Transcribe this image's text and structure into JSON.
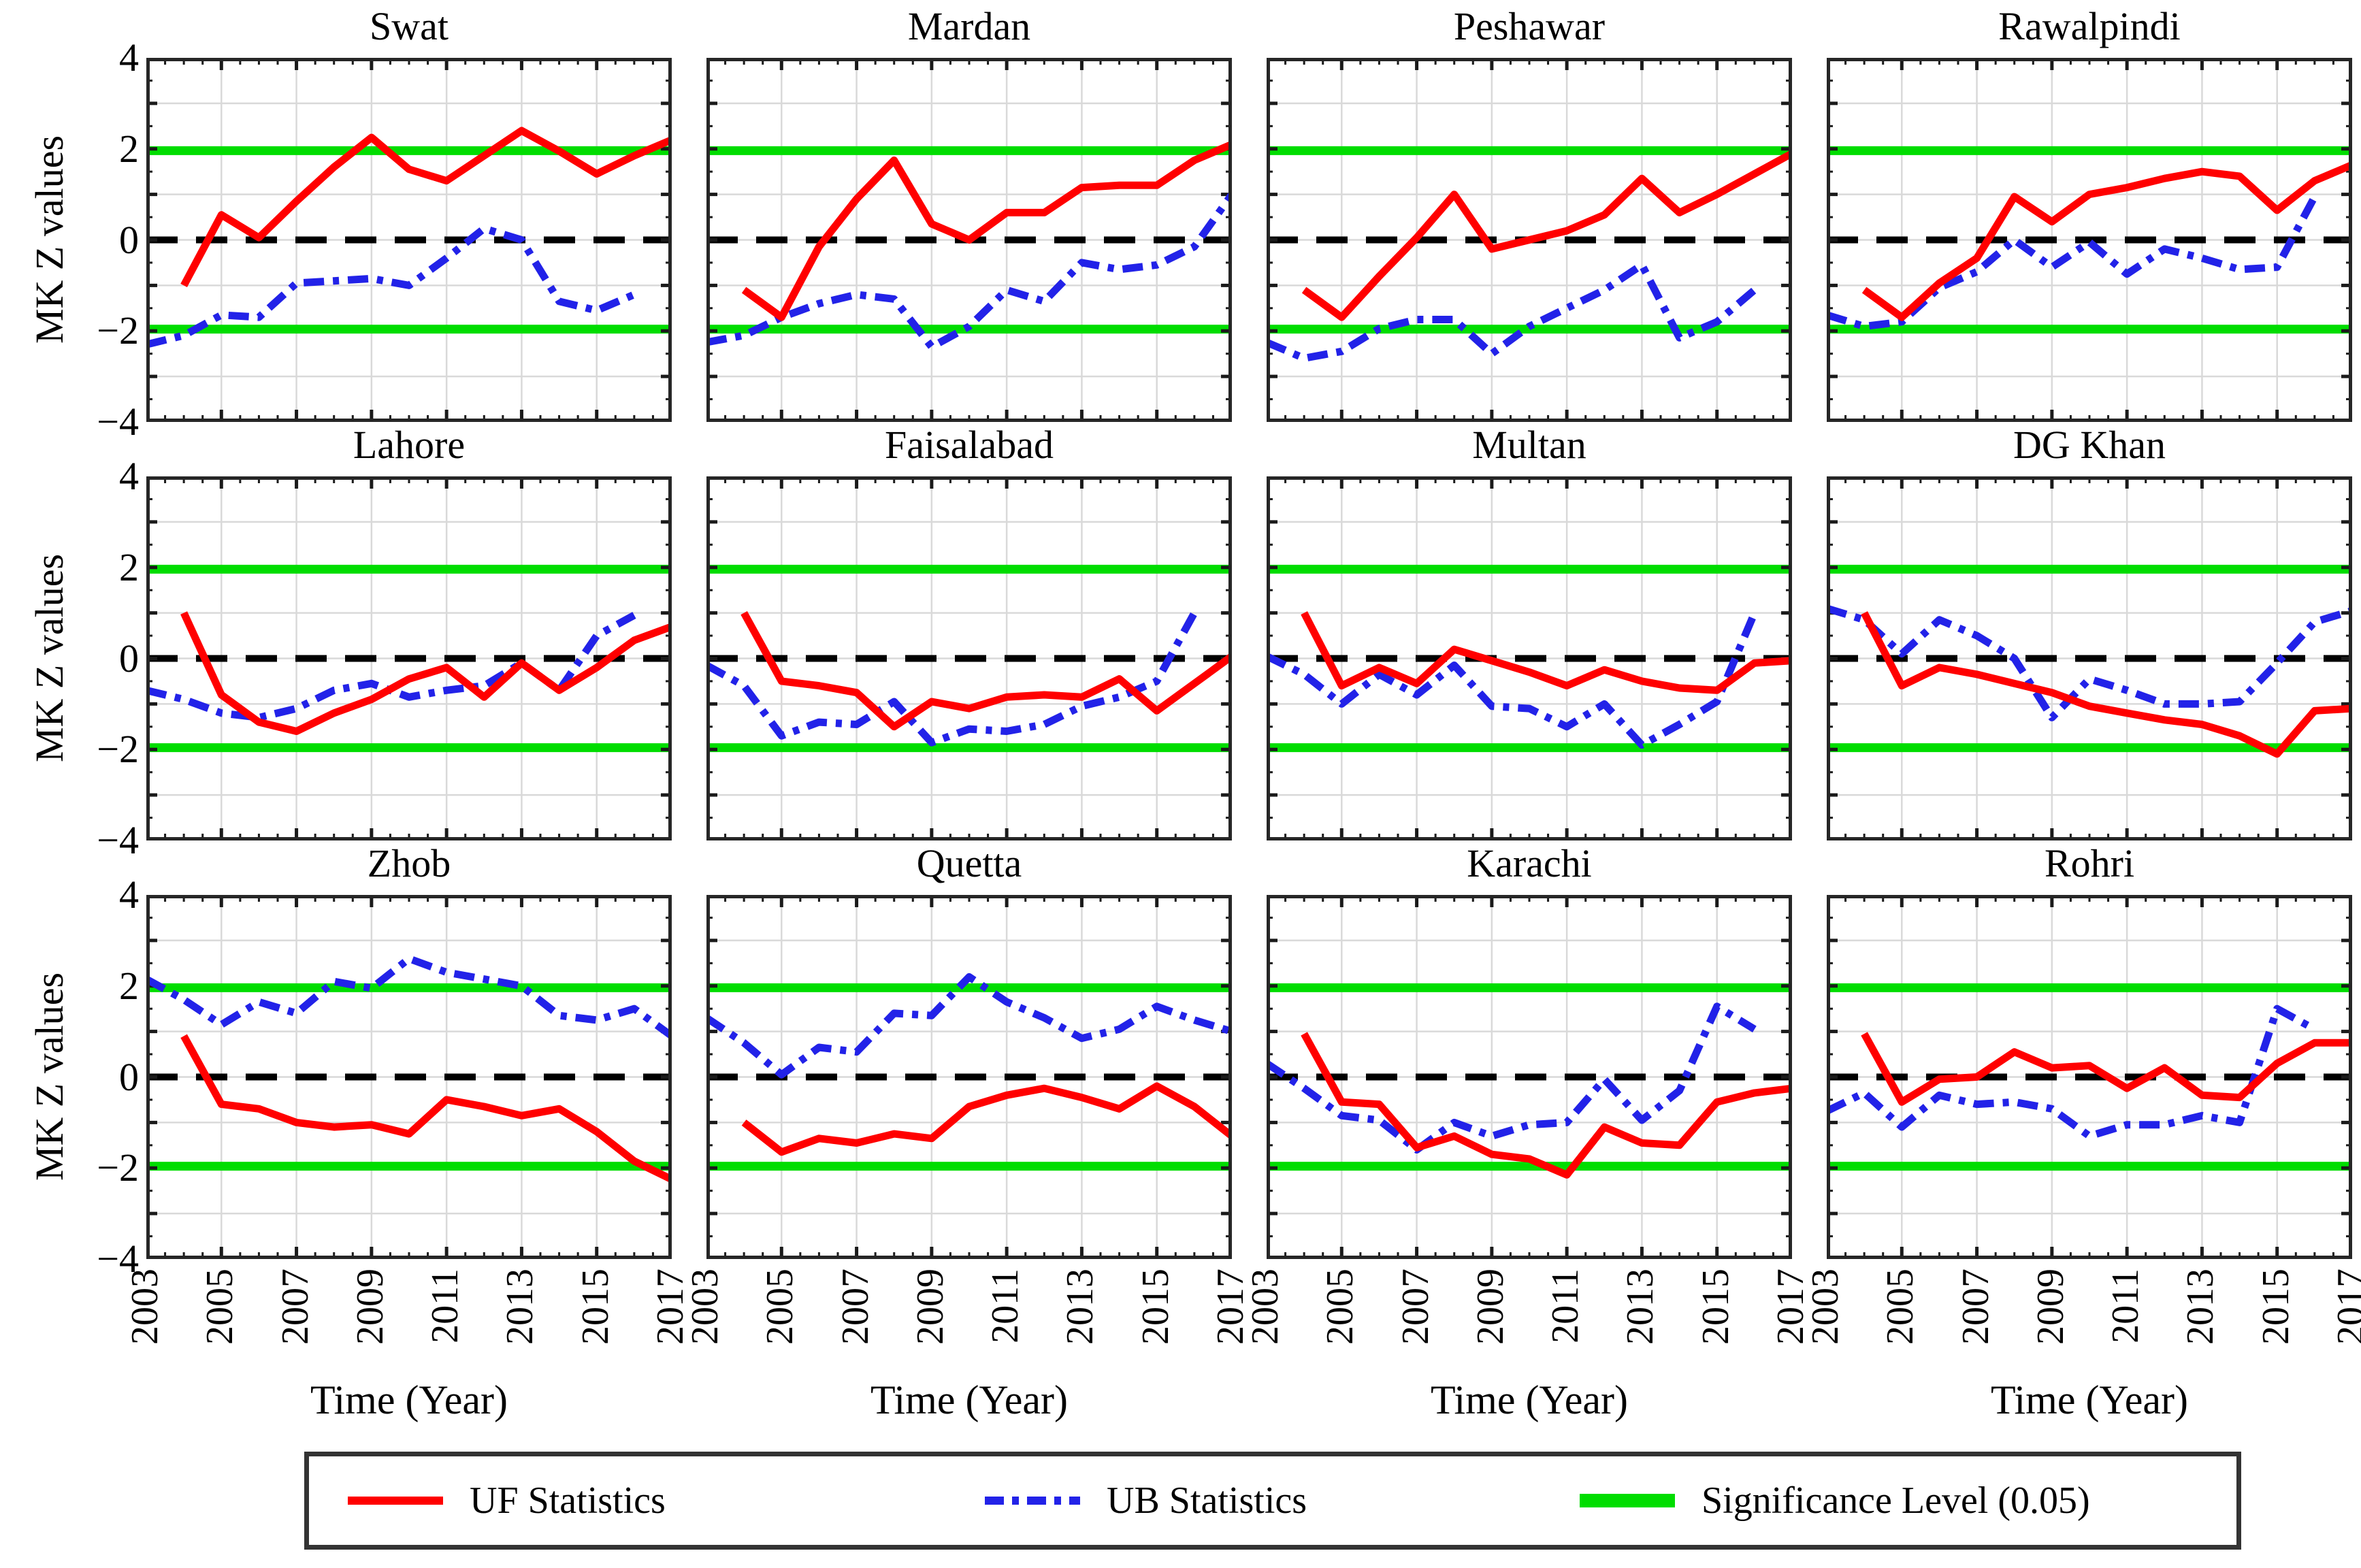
{
  "page_background": "#ffffff",
  "y_axis": {
    "label": "MK Z values",
    "tick_labels": [
      "4",
      "2",
      "0",
      "−2",
      "−4"
    ],
    "tick_values": [
      4,
      2,
      0,
      -2,
      -4
    ]
  },
  "x_axis": {
    "label": "Time (Year)",
    "tick_labels": [
      "2003",
      "2005",
      "2007",
      "2009",
      "2011",
      "2013",
      "2015",
      "2017"
    ],
    "tick_values": [
      2003,
      2005,
      2007,
      2009,
      2011,
      2013,
      2015,
      2017
    ]
  },
  "colors": {
    "uf": "#ff0000",
    "ub": "#2222e8",
    "significance": "#00dd00",
    "zero_line": "#000000",
    "grid": "#d9d9d9",
    "axis": "#262626"
  },
  "legend": {
    "items": [
      {
        "label": "UF Statistics",
        "color": "#ff0000",
        "style": "solid"
      },
      {
        "label": "UB Statistics",
        "color": "#2222e8",
        "style": "dash-dot"
      },
      {
        "label": "Significance Level (0.05)",
        "color": "#00dd00",
        "style": "solid"
      }
    ]
  },
  "chart_data": {
    "type": "line",
    "layout": {
      "rows": 3,
      "cols": 4
    },
    "x_range": [
      2003,
      2017
    ],
    "y_range": [
      -4,
      4
    ],
    "x_ticks": [
      2003,
      2005,
      2007,
      2009,
      2011,
      2013,
      2015,
      2017
    ],
    "y_ticks": [
      4,
      2,
      0,
      -2,
      -4
    ],
    "grid": true,
    "significance_level": 1.96,
    "zero_line": 0,
    "series_info": {
      "uf": {
        "name": "UF Statistics",
        "color": "#ff0000",
        "style": "solid"
      },
      "ub": {
        "name": "UB Statistics",
        "color": "#2222e8",
        "style": "dash-dot"
      }
    },
    "charts": [
      {
        "title": "Swat",
        "uf_start": 2004,
        "uf": [
          -1.0,
          0.55,
          0.05,
          0.85,
          1.6,
          2.25,
          1.55,
          1.3,
          1.85,
          2.4,
          1.95,
          1.45,
          1.85,
          2.2
        ],
        "ub_start": 2003,
        "ub": [
          -2.3,
          -2.1,
          -1.65,
          -1.7,
          -0.95,
          -0.9,
          -0.85,
          -1.0,
          -0.4,
          0.25,
          0.0,
          -1.35,
          -1.55,
          -1.2
        ]
      },
      {
        "title": "Mardan",
        "uf_start": 2004,
        "uf": [
          -1.1,
          -1.7,
          -0.15,
          0.9,
          1.75,
          0.35,
          0.0,
          0.6,
          0.6,
          1.15,
          1.2,
          1.2,
          1.75,
          2.1
        ],
        "ub_start": 2003,
        "ub": [
          -2.25,
          -2.1,
          -1.7,
          -1.4,
          -1.2,
          -1.3,
          -2.35,
          -1.9,
          -1.1,
          -1.35,
          -0.5,
          -0.65,
          -0.55,
          -0.15,
          1.0
        ]
      },
      {
        "title": "Peshawar",
        "uf_start": 2004,
        "uf": [
          -1.1,
          -1.7,
          -0.8,
          0.05,
          1.0,
          -0.2,
          0.0,
          0.2,
          0.55,
          1.35,
          0.6,
          1.0,
          1.45,
          1.9
        ],
        "ub_start": 2003,
        "ub": [
          -2.25,
          -2.6,
          -2.45,
          -1.95,
          -1.75,
          -1.75,
          -2.5,
          -1.9,
          -1.5,
          -1.1,
          -0.55,
          -2.15,
          -1.8,
          -1.1
        ]
      },
      {
        "title": "Rawalpindi",
        "uf_start": 2004,
        "uf": [
          -1.1,
          -1.7,
          -0.95,
          -0.4,
          0.95,
          0.4,
          1.0,
          1.15,
          1.35,
          1.5,
          1.4,
          0.65,
          1.3,
          1.65
        ],
        "ub_start": 2003,
        "ub": [
          -1.65,
          -1.9,
          -1.8,
          -1.05,
          -0.7,
          0.0,
          -0.6,
          -0.05,
          -0.75,
          -0.2,
          -0.4,
          -0.65,
          -0.6,
          0.95
        ]
      },
      {
        "title": "Lahore",
        "uf_start": 2004,
        "uf": [
          1.0,
          -0.8,
          -1.4,
          -1.6,
          -1.2,
          -0.9,
          -0.45,
          -0.2,
          -0.85,
          -0.1,
          -0.7,
          -0.2,
          0.4,
          0.7
        ],
        "ub_start": 2003,
        "ub": [
          -0.7,
          -0.9,
          -1.2,
          -1.3,
          -1.1,
          -0.7,
          -0.55,
          -0.85,
          -0.7,
          -0.6,
          -0.1,
          -0.7,
          0.5,
          0.95
        ]
      },
      {
        "title": "Faisalabad",
        "uf_start": 2004,
        "uf": [
          1.0,
          -0.5,
          -0.6,
          -0.75,
          -1.5,
          -0.95,
          -1.1,
          -0.85,
          -0.8,
          -0.85,
          -0.45,
          -1.15,
          -0.55,
          0.05
        ],
        "ub_start": 2003,
        "ub": [
          -0.15,
          -0.6,
          -1.7,
          -1.4,
          -1.45,
          -0.95,
          -1.85,
          -1.55,
          -1.6,
          -1.45,
          -1.05,
          -0.85,
          -0.5,
          1.0
        ]
      },
      {
        "title": "Multan",
        "uf_start": 2004,
        "uf": [
          1.0,
          -0.6,
          -0.2,
          -0.55,
          0.2,
          -0.05,
          -0.3,
          -0.6,
          -0.25,
          -0.5,
          -0.65,
          -0.7,
          -0.1,
          -0.05
        ],
        "ub_start": 2003,
        "ub": [
          0.05,
          -0.35,
          -1.0,
          -0.35,
          -0.8,
          -0.15,
          -1.05,
          -1.1,
          -1.5,
          -1.0,
          -1.9,
          -1.45,
          -0.95,
          1.0
        ]
      },
      {
        "title": "DG Khan",
        "uf_start": 2004,
        "uf": [
          1.0,
          -0.6,
          -0.2,
          -0.35,
          -0.55,
          -0.75,
          -1.05,
          -1.2,
          -1.35,
          -1.45,
          -1.7,
          -2.1,
          -1.15,
          -1.1
        ],
        "ub_start": 2003,
        "ub": [
          1.1,
          0.85,
          0.1,
          0.85,
          0.5,
          0.0,
          -1.3,
          -0.45,
          -0.7,
          -1.0,
          -1.0,
          -0.95,
          -0.1,
          0.8,
          1.05
        ]
      },
      {
        "title": "Zhob",
        "uf_start": 2004,
        "uf": [
          0.9,
          -0.6,
          -0.7,
          -1.0,
          -1.1,
          -1.05,
          -1.25,
          -0.5,
          -0.65,
          -0.85,
          -0.7,
          -1.2,
          -1.85,
          -2.25
        ],
        "ub_start": 2003,
        "ub": [
          2.15,
          1.7,
          1.15,
          1.65,
          1.4,
          2.1,
          1.95,
          2.6,
          2.3,
          2.15,
          2.0,
          1.35,
          1.25,
          1.5,
          0.9
        ]
      },
      {
        "title": "Quetta",
        "uf_start": 2004,
        "uf": [
          -1.0,
          -1.65,
          -1.35,
          -1.45,
          -1.25,
          -1.35,
          -0.65,
          -0.4,
          -0.25,
          -0.45,
          -0.7,
          -0.2,
          -0.65,
          -1.3
        ],
        "ub_start": 2003,
        "ub": [
          1.3,
          0.75,
          0.05,
          0.65,
          0.55,
          1.4,
          1.35,
          2.2,
          1.65,
          1.3,
          0.85,
          1.05,
          1.55,
          1.25,
          1.0
        ]
      },
      {
        "title": "Karachi",
        "uf_start": 2004,
        "uf": [
          0.95,
          -0.55,
          -0.6,
          -1.55,
          -1.3,
          -1.7,
          -1.8,
          -2.15,
          -1.1,
          -1.45,
          -1.5,
          -0.55,
          -0.35,
          -0.25
        ],
        "ub_start": 2003,
        "ub": [
          0.3,
          -0.25,
          -0.85,
          -0.95,
          -1.6,
          -1.0,
          -1.3,
          -1.05,
          -1.0,
          -0.05,
          -0.95,
          -0.3,
          1.55,
          1.05
        ]
      },
      {
        "title": "Rohri",
        "uf_start": 2004,
        "uf": [
          0.95,
          -0.55,
          -0.05,
          0.0,
          0.55,
          0.2,
          0.25,
          -0.25,
          0.2,
          -0.4,
          -0.45,
          0.3,
          0.75,
          0.75
        ],
        "ub_start": 2003,
        "ub": [
          -0.75,
          -0.35,
          -1.1,
          -0.4,
          -0.6,
          -0.55,
          -0.7,
          -1.3,
          -1.05,
          -1.05,
          -0.85,
          -1.0,
          1.5,
          1.05
        ]
      }
    ]
  }
}
